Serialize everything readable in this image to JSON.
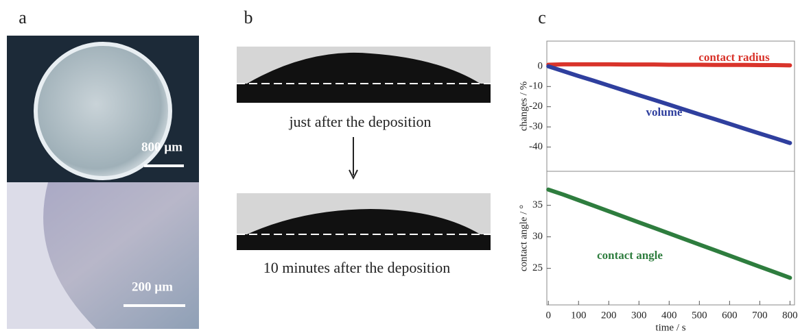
{
  "panels": {
    "a": {
      "label": "a",
      "scale_bars": [
        "800 µm",
        "200 µm"
      ]
    },
    "b": {
      "label": "b",
      "captions": [
        "just after the deposition",
        "10 minutes after the deposition"
      ]
    },
    "c": {
      "label": "c"
    }
  },
  "chart_data": [
    {
      "type": "line",
      "ylabel": "changes / %",
      "x": [
        0,
        50,
        100,
        150,
        200,
        250,
        300,
        350,
        400,
        450,
        500,
        550,
        600,
        650,
        700,
        750,
        800
      ],
      "series": [
        {
          "name": "contact radius",
          "color": "#d9342b",
          "values": [
            0.8,
            1,
            1,
            1,
            1,
            0.9,
            0.9,
            0.9,
            0.8,
            0.8,
            0.8,
            0.7,
            0.7,
            0.7,
            0.6,
            0.6,
            0.5
          ]
        },
        {
          "name": "volume",
          "color": "#2f3f9e",
          "values": [
            0,
            -2.4,
            -4.8,
            -7.1,
            -9.5,
            -11.9,
            -14.3,
            -16.6,
            -19,
            -21.4,
            -23.8,
            -26.1,
            -28.5,
            -30.9,
            -33.3,
            -35.6,
            -38
          ]
        }
      ],
      "xlim": [
        -5,
        815
      ],
      "ylim": [
        -52,
        12.5
      ],
      "yticks": [
        0,
        -10,
        -20,
        -30,
        -40
      ]
    },
    {
      "type": "line",
      "ylabel": "contact angle / °",
      "xlabel": "time / s",
      "x": [
        0,
        50,
        100,
        150,
        200,
        250,
        300,
        350,
        400,
        450,
        500,
        550,
        600,
        650,
        700,
        750,
        800
      ],
      "series": [
        {
          "name": "contact angle",
          "color": "#2e7d3e",
          "values": [
            37.5,
            36.7,
            35.82,
            34.94,
            34.06,
            33.18,
            32.3,
            31.42,
            30.54,
            29.66,
            28.78,
            27.9,
            27.02,
            26.14,
            25.26,
            24.38,
            23.5
          ]
        }
      ],
      "xlim": [
        -5,
        815
      ],
      "ylim": [
        19.2,
        40.4
      ],
      "yticks": [
        25,
        30,
        35
      ],
      "xticks": [
        0,
        100,
        200,
        300,
        400,
        500,
        600,
        700,
        800
      ]
    }
  ]
}
